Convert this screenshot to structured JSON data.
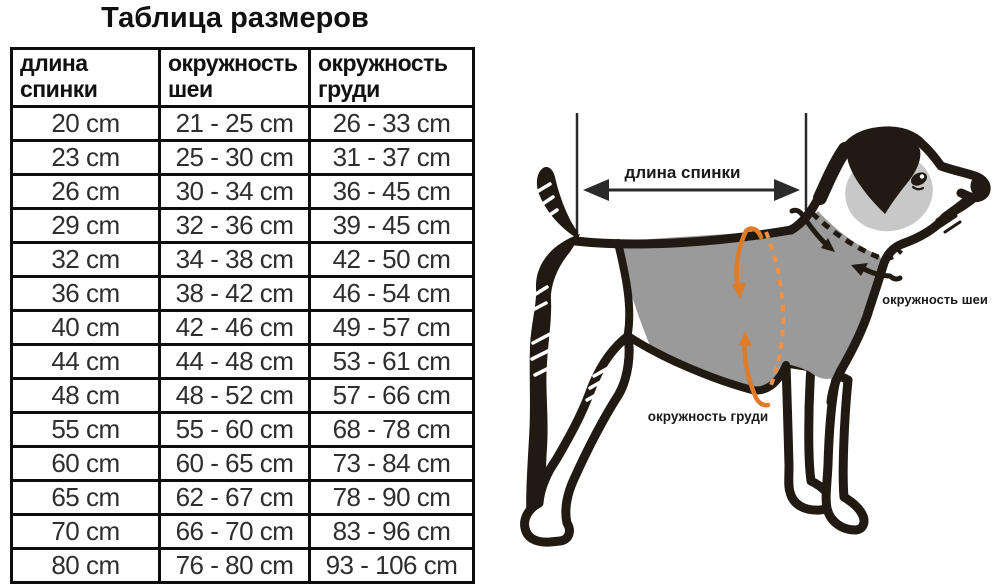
{
  "title": "Таблица размеров",
  "table": {
    "headers": [
      {
        "line1": "длина",
        "line2": "спинки"
      },
      {
        "line1": "окружность",
        "line2": "шеи"
      },
      {
        "line1": "окружность",
        "line2": "груди"
      }
    ],
    "rows": [
      [
        "20 cm",
        "21 - 25 cm",
        "26 - 33 cm"
      ],
      [
        "23 cm",
        "25 - 30 cm",
        "31 - 37 cm"
      ],
      [
        "26 cm",
        "30 - 34 cm",
        "36 - 45 cm"
      ],
      [
        "29 cm",
        "32 - 36 cm",
        "39 - 45 cm"
      ],
      [
        "32 cm",
        "34 - 38 cm",
        "42 - 50 cm"
      ],
      [
        "36 cm",
        "38 - 42 cm",
        "46 - 54 cm"
      ],
      [
        "40 cm",
        "42 - 46 cm",
        "49 - 57 cm"
      ],
      [
        "44 cm",
        "44 - 48 cm",
        "53 - 61 cm"
      ],
      [
        "48 cm",
        "48 - 52 cm",
        "57 - 66 cm"
      ],
      [
        "55 cm",
        "55 - 60 cm",
        "68 - 78 cm"
      ],
      [
        "60 cm",
        "60 - 65 cm",
        "73 - 84 cm"
      ],
      [
        "65 cm",
        "62 - 67 cm",
        "78 - 90 cm"
      ],
      [
        "70 cm",
        "66 - 70 cm",
        "83 - 96 cm"
      ],
      [
        "80 cm",
        "76 - 80 cm",
        "93 - 106 cm"
      ]
    ]
  },
  "diagram": {
    "back_length_label": "длина спинки",
    "neck_label": "окружность шеи",
    "chest_label": "окружность груди",
    "colors": {
      "accent_orange": "#e07b28",
      "accent_orange_light": "#ef9147",
      "coat_gray": "#9a9a9a",
      "eye_patch_gray": "#c8c8c8",
      "ink": "#211a12"
    },
    "icons": [
      "back-length-measure-arrow",
      "neck-circumference-arrow-icons",
      "chest-circumference-arrow-icons",
      "collar-dashed-line",
      "chest-dashed-line"
    ]
  }
}
